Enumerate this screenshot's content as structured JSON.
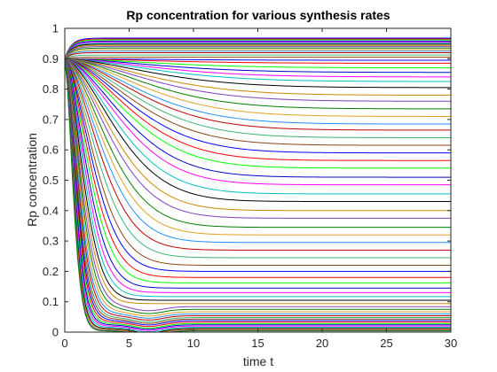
{
  "chart_data": {
    "type": "line",
    "title": "Rp concentration for various synthesis rates",
    "xlabel": "time t",
    "ylabel": "Rp concentration",
    "xlim": [
      0,
      30
    ],
    "ylim": [
      0,
      1
    ],
    "x_ticks": [
      "0",
      "5",
      "10",
      "15",
      "20",
      "25",
      "30"
    ],
    "y_ticks": [
      "0",
      "0.1",
      "0.2",
      "0.3",
      "0.4",
      "0.5",
      "0.6",
      "0.7",
      "0.8",
      "0.9",
      "1"
    ],
    "grid": false,
    "legend": "none",
    "initial_value": 0.9,
    "series_final_values": [
      0.968,
      0.965,
      0.962,
      0.958,
      0.955,
      0.951,
      0.948,
      0.944,
      0.94,
      0.935,
      0.93,
      0.925,
      0.92,
      0.912,
      0.905,
      0.895,
      0.885,
      0.87,
      0.855,
      0.84,
      0.825,
      0.805,
      0.78,
      0.76,
      0.735,
      0.71,
      0.685,
      0.665,
      0.64,
      0.615,
      0.59,
      0.565,
      0.54,
      0.51,
      0.485,
      0.455,
      0.43,
      0.4,
      0.375,
      0.345,
      0.32,
      0.295,
      0.27,
      0.245,
      0.22,
      0.2,
      0.18,
      0.162,
      0.145,
      0.13,
      0.117,
      0.105,
      0.094,
      0.084,
      0.075,
      0.067,
      0.06,
      0.054,
      0.048,
      0.043,
      0.038,
      0.033,
      0.028,
      0.024,
      0.02,
      0.016,
      0.012,
      0.009,
      0.006,
      0.004
    ],
    "series_colors": [
      "#0000ff",
      "#ff0000",
      "#00ff00",
      "#0000cd",
      "#ff00ff",
      "#00bfbf",
      "#000000",
      "#cc8800",
      "#7f3fbf",
      "#008000",
      "#e0a020",
      "#1e90ff",
      "#bf0000",
      "#3cb371",
      "#8b4513"
    ]
  }
}
